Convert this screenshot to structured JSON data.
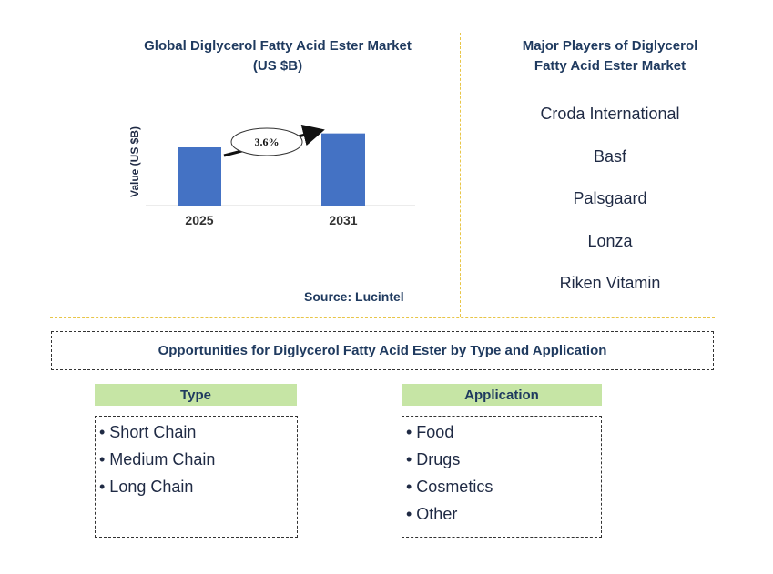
{
  "chart_data": {
    "type": "bar",
    "title": "Global Diglycerol Fatty Acid Ester Market (US $B)",
    "title_lines": [
      "Global Diglycerol Fatty Acid Ester Market",
      "(US $B)"
    ],
    "categories": [
      "2025",
      "2031"
    ],
    "values": [
      1.0,
      1.24
    ],
    "ylabel": "Value (US $B)",
    "ylim": [
      0,
      1.5
    ],
    "annotation": "3.6%",
    "bar_color": "#4472c4",
    "grid": false
  },
  "source": "Source: Lucintel",
  "players": {
    "title_lines": [
      "Major Players of Diglycerol",
      "Fatty Acid Ester Market"
    ],
    "items": [
      "Croda International",
      "Basf",
      "Palsgaard",
      "Lonza",
      "Riken Vitamin"
    ]
  },
  "opportunities": {
    "title": "Opportunities for Diglycerol Fatty Acid Ester by Type and Application"
  },
  "segments": {
    "type": {
      "header": "Type",
      "items": [
        "• Short Chain",
        "• Medium Chain",
        "• Long Chain"
      ]
    },
    "application": {
      "header": "Application",
      "items": [
        "• Food",
        "• Drugs",
        "• Cosmetics",
        "• Other"
      ]
    }
  },
  "colors": {
    "title": "#1f3a5f",
    "divider": "#e8c547",
    "segment_header_bg": "#c6e5a5"
  }
}
